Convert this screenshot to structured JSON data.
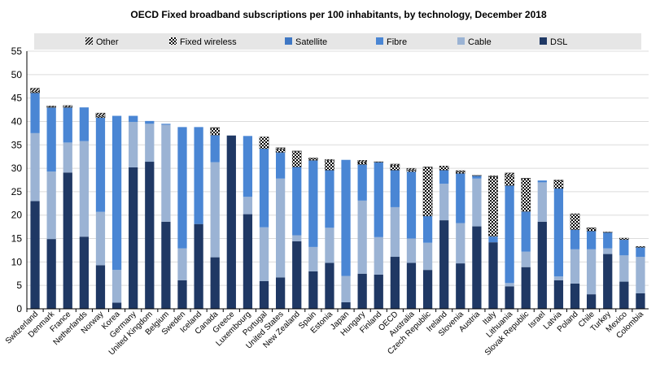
{
  "chart_data": {
    "type": "bar",
    "stacked": true,
    "title": "OECD Fixed broadband subscriptions per 100 inhabitants, by technology, December 2018",
    "xlabel": "",
    "ylabel": "",
    "ylim": [
      0,
      55
    ],
    "yticks": [
      0,
      5,
      10,
      15,
      20,
      25,
      30,
      35,
      40,
      45,
      50,
      55
    ],
    "grid": true,
    "legend_position": "top",
    "legend_order": [
      "Other",
      "Fixed wireless",
      "Satellite",
      "Fibre",
      "Cable",
      "DSL"
    ],
    "categories": [
      "Switzerland",
      "Denmark",
      "France",
      "Netherlands",
      "Norway",
      "Korea",
      "Germany",
      "United Kingdom",
      "Belgium",
      "Sweden",
      "Iceland",
      "Canada",
      "Greece",
      "Luxembourg",
      "Portugal",
      "United States",
      "New Zealand",
      "Spain",
      "Estonia",
      "Japan",
      "Hungary",
      "Finland",
      "OECD",
      "Australia",
      "Czech Republic",
      "Ireland",
      "Slovenia",
      "Austria",
      "Italy",
      "Lithuania",
      "Slovak Republic",
      "Israel",
      "Latvia",
      "Poland",
      "Chile",
      "Turkey",
      "Mexico",
      "Colombia"
    ],
    "series": [
      {
        "name": "DSL",
        "color": "#1f3864",
        "values": [
          23.0,
          14.9,
          29.1,
          15.4,
          9.3,
          1.3,
          30.2,
          31.4,
          18.6,
          6.1,
          18.1,
          11.0,
          37.0,
          20.2,
          5.9,
          6.7,
          14.4,
          8.0,
          9.8,
          1.4,
          7.5,
          7.3,
          11.1,
          9.8,
          8.3,
          18.9,
          9.7,
          17.6,
          14.2,
          4.8,
          8.9,
          18.6,
          6.1,
          5.4,
          3.1,
          11.7,
          5.8,
          3.3
        ]
      },
      {
        "name": "Cable",
        "color": "#9bb3d4",
        "values": [
          14.5,
          14.4,
          6.4,
          20.4,
          11.4,
          7.0,
          9.7,
          8.1,
          20.7,
          6.8,
          0.0,
          20.3,
          0.0,
          3.7,
          11.5,
          21.1,
          1.3,
          5.2,
          7.5,
          5.6,
          15.6,
          8.0,
          10.6,
          5.2,
          5.8,
          7.8,
          8.6,
          10.2,
          0.0,
          0.7,
          3.3,
          8.4,
          0.8,
          7.3,
          9.6,
          1.2,
          5.6,
          7.8
        ]
      },
      {
        "name": "Fibre",
        "color": "#4a86d4",
        "values": [
          8.5,
          13.6,
          7.4,
          7.2,
          20.1,
          32.9,
          1.3,
          0.6,
          0.2,
          25.9,
          20.7,
          5.7,
          0.0,
          13.0,
          16.8,
          5.4,
          14.6,
          18.4,
          12.2,
          24.8,
          7.7,
          16.0,
          7.8,
          14.2,
          5.7,
          2.8,
          10.6,
          0.6,
          1.2,
          20.8,
          8.5,
          0.4,
          18.8,
          4.2,
          3.9,
          3.4,
          3.2,
          2.0
        ]
      },
      {
        "name": "Satellite",
        "color": "#3f77c4",
        "values": [
          0.1,
          0.1,
          0.1,
          0.0,
          0.0,
          0.0,
          0.0,
          0.0,
          0.0,
          0.0,
          0.0,
          0.1,
          0.0,
          0.0,
          0.0,
          0.2,
          0.0,
          0.1,
          0.1,
          0.0,
          0.0,
          0.0,
          0.1,
          0.1,
          0.0,
          0.1,
          0.0,
          0.0,
          0.1,
          0.0,
          0.1,
          0.0,
          0.0,
          0.0,
          0.0,
          0.0,
          0.2,
          0.0
        ]
      },
      {
        "name": "Fixed wireless",
        "color": "#e8e8e8",
        "values": [
          0.2,
          0.1,
          0.1,
          0.0,
          0.3,
          0.0,
          0.0,
          0.0,
          0.0,
          0.0,
          0.0,
          1.5,
          0.0,
          0.0,
          2.5,
          0.7,
          3.3,
          0.4,
          2.0,
          0.0,
          0.4,
          0.1,
          1.0,
          0.3,
          10.4,
          0.9,
          0.4,
          0.1,
          12.7,
          2.0,
          7.0,
          0.0,
          1.6,
          3.4,
          0.6,
          0.1,
          0.3,
          0.2
        ]
      },
      {
        "name": "Other",
        "color": "#e8e8e8",
        "values": [
          0.8,
          0.2,
          0.3,
          0.0,
          0.7,
          0.0,
          0.0,
          0.0,
          0.0,
          0.0,
          0.0,
          0.1,
          0.0,
          0.0,
          0.0,
          0.3,
          0.1,
          0.1,
          0.3,
          0.0,
          0.5,
          0.0,
          0.3,
          0.4,
          0.1,
          0.0,
          0.2,
          0.0,
          0.2,
          0.7,
          0.1,
          0.0,
          0.2,
          0.0,
          0.1,
          0.0,
          0.0,
          0.0
        ]
      }
    ]
  }
}
